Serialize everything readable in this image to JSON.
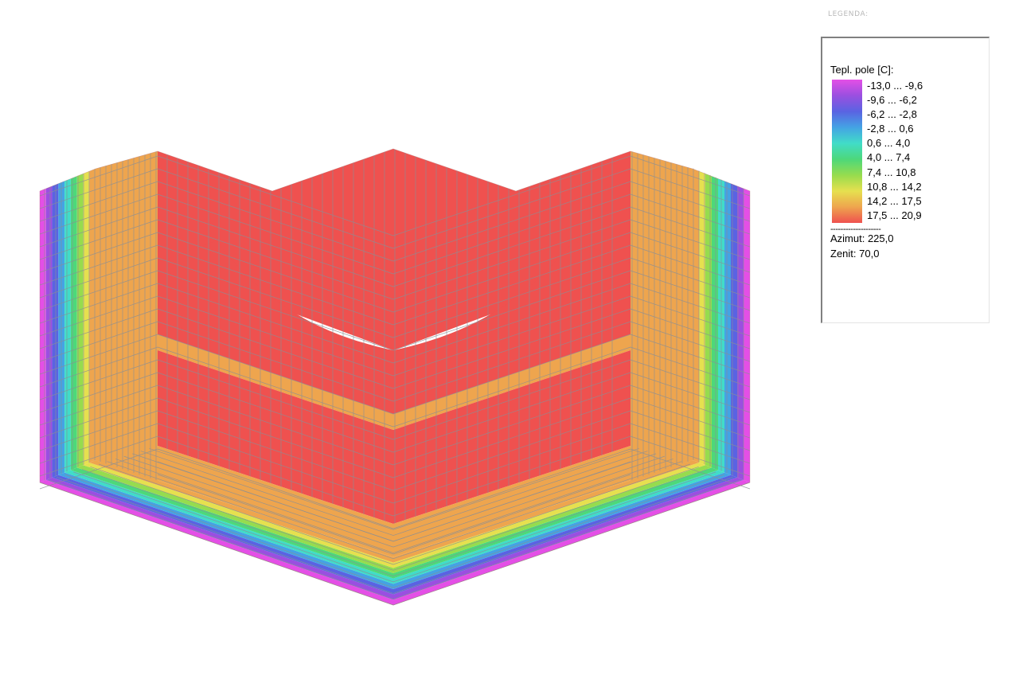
{
  "legend": {
    "caption": "LEGENDA:",
    "title": "Tepl. pole [C]:",
    "ranges": [
      {
        "label": "-13,0 ... -9,6",
        "color": "#e44fe6"
      },
      {
        "label": "-9,6 ... -6,2",
        "color": "#9a4fe0"
      },
      {
        "label": "-6,2 ... -2,8",
        "color": "#5a63e2"
      },
      {
        "label": "-2,8 ... 0,6",
        "color": "#44a3e4"
      },
      {
        "label": "0,6 ... 4,0",
        "color": "#41dcc8"
      },
      {
        "label": "4,0 ... 7,4",
        "color": "#4dd87a"
      },
      {
        "label": "7,4 ... 10,8",
        "color": "#96dc4e"
      },
      {
        "label": "10,8 ... 14,2",
        "color": "#e6e04f"
      },
      {
        "label": "14,2 ... 17,5",
        "color": "#eea54e"
      },
      {
        "label": "17,5 ... 20,9",
        "color": "#ef514f"
      }
    ],
    "separator": "--------------------",
    "azimut": "Azimut: 225,0",
    "zenit": "Zenit: 70,0"
  },
  "colors": {
    "background": "#ffffff",
    "grid_line": "#8a8f96",
    "warm": "#ef514f",
    "mid": "#eea54e"
  }
}
